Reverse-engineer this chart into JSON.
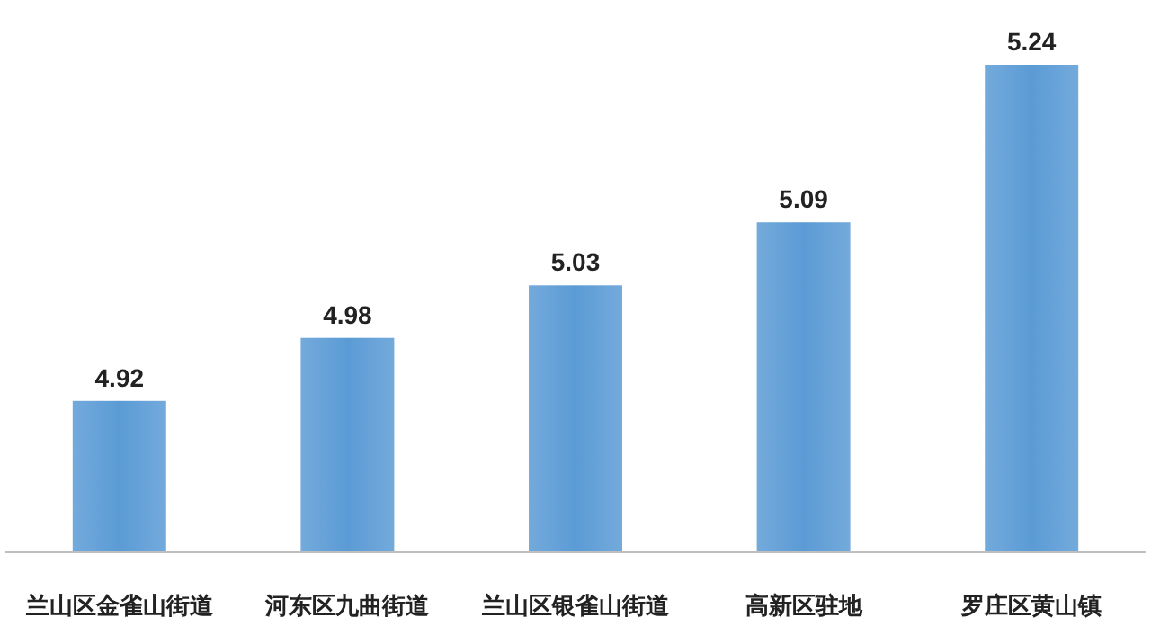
{
  "chart_data": {
    "type": "bar",
    "categories": [
      "兰山区金雀山街道",
      "河东区九曲街道",
      "兰山区银雀山街道",
      "高新区驻地",
      "罗庄区黄山镇"
    ],
    "values": [
      4.92,
      4.98,
      5.03,
      5.09,
      5.24
    ],
    "color": "#5b9bd5",
    "ylim": [
      4.776,
      5.24
    ],
    "data_labels": true
  }
}
